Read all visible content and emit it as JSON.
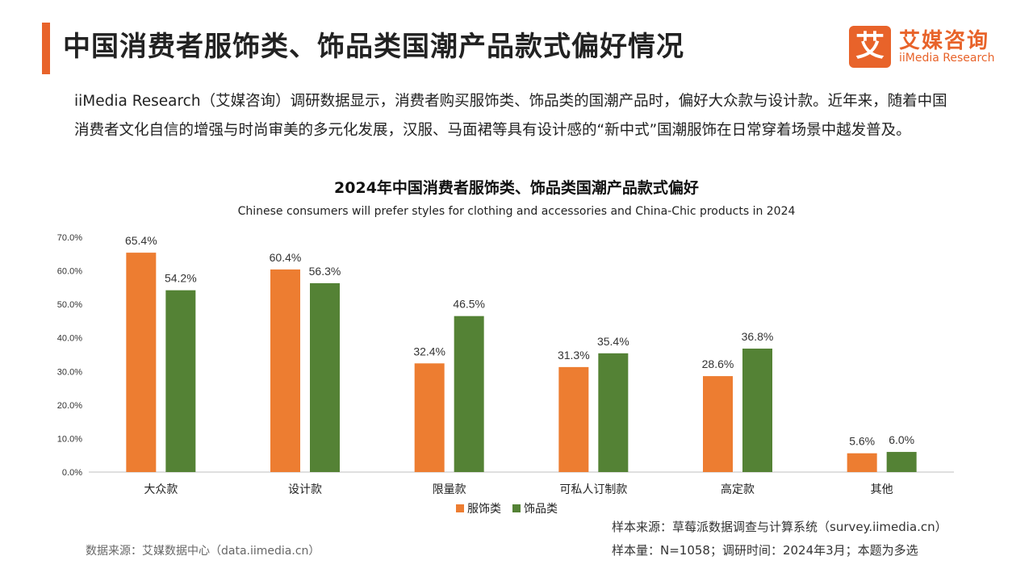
{
  "page": {
    "title": "中国消费者服饰类、饰品类国潮产品款式偏好情况",
    "intro": "iiMedia Research（艾媒咨询）调研数据显示，消费者购买服饰类、饰品类的国潮产品时，偏好大众款与设计款。近年来，随着中国消费者文化自信的增强与时尚审美的多元化发展，汉服、马面裙等具有设计感的“新中式”国潮服饰在日常穿着场景中越发普及。"
  },
  "logo": {
    "mark": "艾",
    "cn": "艾媒咨询",
    "en": "iiMedia Research"
  },
  "colors": {
    "accent": "#e8632a",
    "series_clothing": "#ed7d31",
    "series_accessories": "#548235",
    "axis": "#bfbfbf"
  },
  "chart_data": {
    "type": "bar",
    "title": "2024年中国消费者服饰类、饰品类国潮产品款式偏好",
    "subtitle": "Chinese consumers will prefer styles for clothing and accessories and China-Chic products in 2024",
    "categories": [
      "大众款",
      "设计款",
      "限量款",
      "可私人订制款",
      "高定款",
      "其他"
    ],
    "series": [
      {
        "name": "服饰类",
        "values": [
          65.4,
          60.4,
          32.4,
          31.3,
          28.6,
          5.6
        ]
      },
      {
        "name": "饰品类",
        "values": [
          54.2,
          56.3,
          46.5,
          35.4,
          36.8,
          6.0
        ]
      }
    ],
    "ylim": [
      0,
      70
    ],
    "yticks": [
      "0.0%",
      "10.0%",
      "20.0%",
      "30.0%",
      "40.0%",
      "50.0%",
      "60.0%",
      "70.0%"
    ],
    "value_suffix": "%",
    "legend_position": "bottom",
    "grid": false
  },
  "footer": {
    "data_source": "数据来源：艾媒数据中心（data.iimedia.cn）",
    "sample_source": "样本来源：草莓派数据调查与计算系统（survey.iimedia.cn）",
    "sample_info": "样本量：N=1058；调研时间：2024年3月；本题为多选"
  }
}
